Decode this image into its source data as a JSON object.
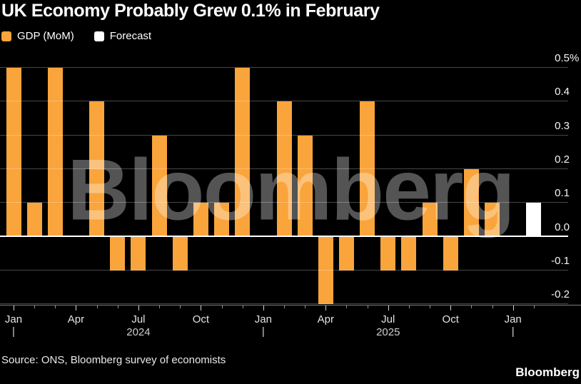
{
  "title": "UK Economy Probably Grew 0.1% in February",
  "legend": [
    {
      "label": "GDP (MoM)",
      "color": "#FAA43C"
    },
    {
      "label": "Forecast",
      "color": "#FFFFFF"
    }
  ],
  "watermark": "Bloomberg",
  "source": "Source: ONS, Bloomberg survey of economists",
  "brand_logo": "Bloomberg",
  "colors": {
    "background": "#000000",
    "bar": "#FAA43C",
    "forecast_bar": "#FFFFFF",
    "gridline": "#4A4A4A",
    "zero_line": "#FFFFFF",
    "axis_line": "#7D7D7D",
    "title_text": "#FFFFFF",
    "axis_text": "#E3E3E3",
    "year_text": "#CFCFCF"
  },
  "chart_data": {
    "type": "bar",
    "title": "UK Economy Probably Grew 0.1% in February",
    "unit": "%",
    "ylabel": "",
    "xlabel": "",
    "ylim": [
      -0.21,
      0.56
    ],
    "grid": true,
    "legend_position": "top-left",
    "y_axis_side": "right",
    "x": [
      "Jan 2024",
      "Feb 2024",
      "Mar 2024",
      "Apr 2024",
      "May 2024",
      "Jun 2024",
      "Jul 2024",
      "Aug 2024",
      "Sep 2024",
      "Oct 2024",
      "Nov 2024",
      "Dec 2024",
      "Jan 2025",
      "Feb 2025",
      "Mar 2025",
      "Apr 2025",
      "May 2025",
      "Jun 2025",
      "Jul 2025",
      "Aug 2025",
      "Sep 2025",
      "Oct 2025",
      "Nov 2025",
      "Dec 2025",
      "Jan 2026",
      "Feb 2026"
    ],
    "values": [
      0.5,
      0.1,
      0.5,
      0.0,
      0.4,
      -0.1,
      -0.1,
      0.3,
      -0.1,
      0.1,
      0.1,
      0.5,
      0.0,
      0.4,
      0.3,
      -0.2,
      -0.1,
      0.4,
      -0.1,
      -0.1,
      0.1,
      -0.1,
      0.2,
      0.1,
      0.0,
      0.1
    ],
    "forecast_index": 25,
    "series": [
      {
        "name": "GDP (MoM)",
        "color": "#FAA43C"
      },
      {
        "name": "Forecast",
        "color": "#FFFFFF"
      }
    ],
    "x_tick_labels": [
      {
        "label": "Jan",
        "month_index": 0
      },
      {
        "label": "Apr",
        "month_index": 3
      },
      {
        "label": "Jul",
        "month_index": 6
      },
      {
        "label": "Oct",
        "month_index": 9
      },
      {
        "label": "Jan",
        "month_index": 12
      },
      {
        "label": "Apr",
        "month_index": 15
      },
      {
        "label": "Jul",
        "month_index": 18
      },
      {
        "label": "Oct",
        "month_index": 21
      },
      {
        "label": "Jan",
        "month_index": 24
      }
    ],
    "year_markers": [
      {
        "label": "2024",
        "month_index": 6
      },
      {
        "label": "2025",
        "month_index": 18
      }
    ],
    "year_separator_indices": [
      0,
      12,
      24
    ],
    "y_ticks": [
      {
        "label": "0.5",
        "suffix": "%",
        "value": 0.5
      },
      {
        "label": "0.4",
        "suffix": "",
        "value": 0.4
      },
      {
        "label": "0.3",
        "suffix": "",
        "value": 0.3
      },
      {
        "label": "0.2",
        "suffix": "",
        "value": 0.2
      },
      {
        "label": "0.1",
        "suffix": "",
        "value": 0.1
      },
      {
        "label": "0.0",
        "suffix": "",
        "value": 0.0
      },
      {
        "label": "-0.1",
        "suffix": "",
        "value": -0.1
      },
      {
        "label": "-0.2",
        "suffix": "",
        "value": -0.2
      }
    ]
  }
}
